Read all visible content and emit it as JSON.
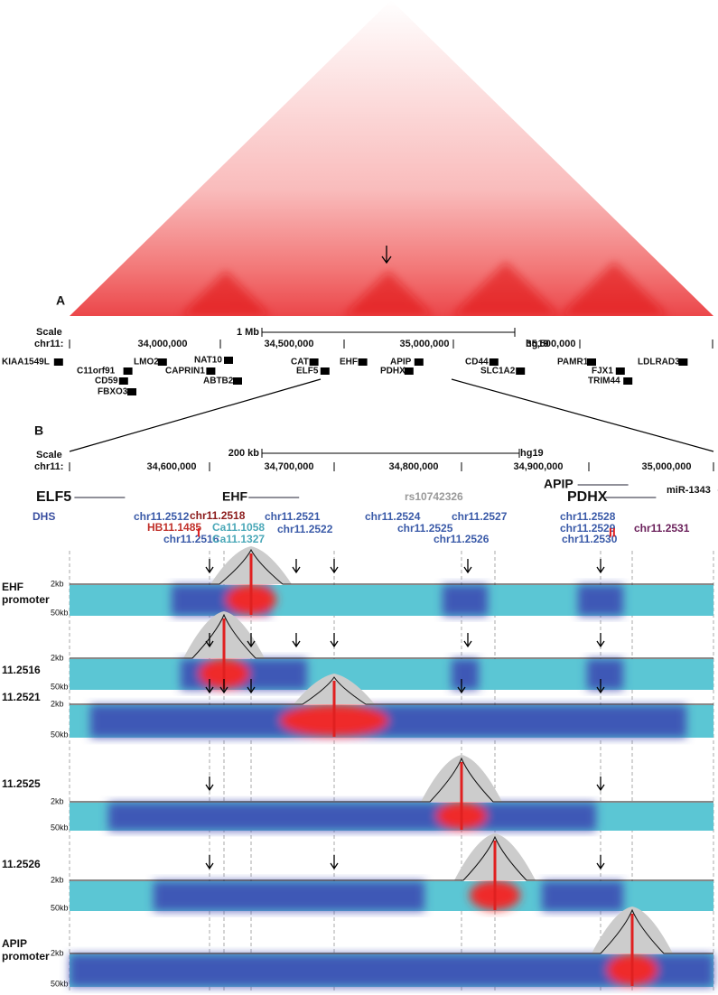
{
  "panel_a": {
    "label": "A",
    "scale_label": "Scale",
    "chrom": "chr11:",
    "scale_bar": "1 Mb",
    "assembly": "hg19",
    "coords": [
      "34,000,000",
      "34,500,000",
      "35,000,000",
      "35,500,000"
    ],
    "genes": [
      "KIAA1549L",
      "C11orf91",
      "CD59",
      "FBXO3",
      "LMO2",
      "NAT10",
      "CAPRIN1",
      "ABTB2",
      "CAT",
      "ELF5",
      "EHF",
      "APIP",
      "PDHX",
      "CD44",
      "SLC1A2",
      "PAMR1",
      "FJX1",
      "TRIM44",
      "LDLRAD3"
    ]
  },
  "panel_b": {
    "label": "B",
    "scale_label": "Scale",
    "chrom": "chr11:",
    "scale_bar": "200 kb",
    "assembly": "hg19",
    "coords": [
      "34,600,000",
      "34,700,000",
      "34,800,000",
      "34,900,000",
      "35,000,000"
    ],
    "genes": [
      "ELF5",
      "EHF",
      "APIP",
      "PDHX",
      "miR-1343"
    ],
    "snp": "rs10742326",
    "dhs_label": "DHS",
    "dhs": [
      "chr11.2512",
      "chr11.2518",
      "HB11.1485",
      "chr11.2516",
      "Ca11.1058",
      "Ca11.1327",
      "chr11.2521",
      "chr11.2522",
      "chr11.2524",
      "chr11.2525",
      "chr11.2526",
      "chr11.2527",
      "chr11.2528",
      "chr11.2529",
      "chr11.2530",
      "chr11.2531"
    ],
    "markers": [
      "I",
      "II"
    ],
    "axis_labels": [
      "2kb",
      "50kb"
    ],
    "tracks": [
      [
        "EHF",
        "promoter"
      ],
      [
        "11.2516"
      ],
      [
        "11.2521"
      ],
      [
        "11.2525"
      ],
      [
        "11.2526"
      ],
      [
        "APIP",
        "promoter"
      ]
    ]
  }
}
